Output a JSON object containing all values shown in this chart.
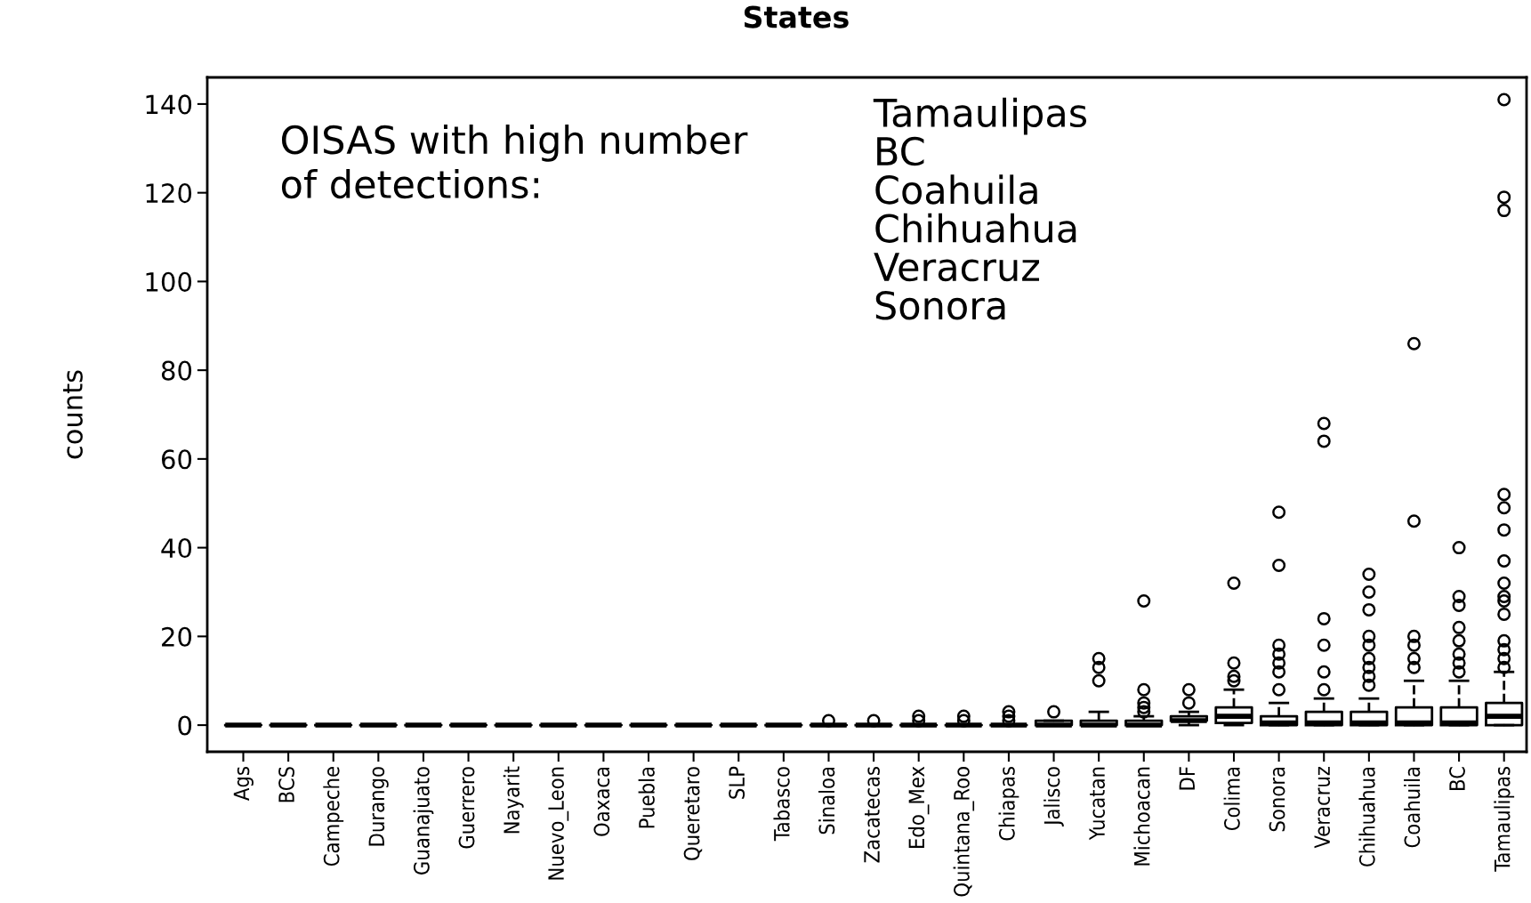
{
  "chart_data": {
    "type": "box",
    "title": "States",
    "ylabel": "counts",
    "categories": [
      "Ags",
      "BCS",
      "Campeche",
      "Durango",
      "Guanajuato",
      "Guerrero",
      "Nayarit",
      "Nuevo_Leon",
      "Oaxaca",
      "Puebla",
      "Queretaro",
      "SLP",
      "Tabasco",
      "Sinaloa",
      "Zacatecas",
      "Edo_Mex",
      "Quintana_Roo",
      "Chiapas",
      "Jalisco",
      "Yucatan",
      "Michoacan",
      "DF",
      "Colima",
      "Sonora",
      "Veracruz",
      "Chihuahua",
      "Coahuila",
      "BC",
      "Tamaulipas"
    ],
    "boxes": [
      {
        "low": 0,
        "q1": 0,
        "median": 0,
        "q3": 0,
        "high": 0
      },
      {
        "low": 0,
        "q1": 0,
        "median": 0,
        "q3": 0,
        "high": 0
      },
      {
        "low": 0,
        "q1": 0,
        "median": 0,
        "q3": 0,
        "high": 0
      },
      {
        "low": 0,
        "q1": 0,
        "median": 0,
        "q3": 0,
        "high": 0
      },
      {
        "low": 0,
        "q1": 0,
        "median": 0,
        "q3": 0,
        "high": 0
      },
      {
        "low": 0,
        "q1": 0,
        "median": 0,
        "q3": 0,
        "high": 0
      },
      {
        "low": 0,
        "q1": 0,
        "median": 0,
        "q3": 0,
        "high": 0
      },
      {
        "low": 0,
        "q1": 0,
        "median": 0,
        "q3": 0,
        "high": 0
      },
      {
        "low": 0,
        "q1": 0,
        "median": 0,
        "q3": 0,
        "high": 0
      },
      {
        "low": 0,
        "q1": 0,
        "median": 0,
        "q3": 0,
        "high": 0
      },
      {
        "low": 0,
        "q1": 0,
        "median": 0,
        "q3": 0,
        "high": 0
      },
      {
        "low": 0,
        "q1": 0,
        "median": 0,
        "q3": 0,
        "high": 0
      },
      {
        "low": 0,
        "q1": 0,
        "median": 0,
        "q3": 0,
        "high": 0
      },
      {
        "low": 0,
        "q1": 0,
        "median": 0,
        "q3": 0,
        "high": 0,
        "outliers": [
          1
        ]
      },
      {
        "low": 0,
        "q1": 0,
        "median": 0,
        "q3": 0,
        "high": 0,
        "outliers": [
          1
        ]
      },
      {
        "low": 0,
        "q1": 0,
        "median": 0,
        "q3": 0,
        "high": 0,
        "outliers": [
          1,
          2
        ]
      },
      {
        "low": 0,
        "q1": 0,
        "median": 0,
        "q3": 0,
        "high": 0,
        "outliers": [
          1,
          2
        ]
      },
      {
        "low": 0,
        "q1": 0,
        "median": 0,
        "q3": 0,
        "high": 0,
        "outliers": [
          1,
          2,
          3
        ]
      },
      {
        "low": 0,
        "q1": 0,
        "median": 0,
        "q3": 1,
        "high": 1,
        "outliers": [
          3
        ]
      },
      {
        "low": 0,
        "q1": 0,
        "median": 0,
        "q3": 1,
        "high": 3,
        "outliers": [
          10,
          13,
          15
        ]
      },
      {
        "low": 0,
        "q1": 0,
        "median": 0,
        "q3": 1,
        "high": 2,
        "outliers": [
          3,
          4,
          5,
          8,
          28
        ]
      },
      {
        "low": 0,
        "q1": 1,
        "median": 1,
        "q3": 2,
        "high": 3,
        "outliers": [
          5,
          8
        ]
      },
      {
        "low": 0,
        "q1": 0.5,
        "median": 2,
        "q3": 4,
        "high": 8,
        "outliers": [
          10,
          11,
          14,
          32
        ]
      },
      {
        "low": 0,
        "q1": 0,
        "median": 0.5,
        "q3": 2,
        "high": 5,
        "outliers": [
          8,
          12,
          14,
          16,
          18,
          36,
          48
        ]
      },
      {
        "low": 0,
        "q1": 0,
        "median": 0.5,
        "q3": 3,
        "high": 6,
        "outliers": [
          8,
          12,
          18,
          24,
          64,
          68
        ]
      },
      {
        "low": 0,
        "q1": 0,
        "median": 0.5,
        "q3": 3,
        "high": 6,
        "outliers": [
          9,
          11,
          13,
          15,
          18,
          20,
          26,
          30,
          34
        ]
      },
      {
        "low": 0,
        "q1": 0,
        "median": 0.5,
        "q3": 4,
        "high": 10,
        "outliers": [
          13,
          15,
          18,
          20,
          46,
          86
        ]
      },
      {
        "low": 0,
        "q1": 0,
        "median": 0.5,
        "q3": 4,
        "high": 10,
        "outliers": [
          12,
          14,
          16,
          19,
          22,
          27,
          29,
          40
        ]
      },
      {
        "low": 0,
        "q1": 0,
        "median": 2,
        "q3": 5,
        "high": 12,
        "outliers": [
          13,
          15,
          17,
          19,
          25,
          28,
          29,
          32,
          37,
          44,
          49,
          52,
          116,
          119,
          141
        ]
      }
    ],
    "ylim": [
      -6,
      146
    ],
    "yticks": [
      0,
      20,
      40,
      60,
      80,
      100,
      120,
      140
    ],
    "grid": false,
    "annotations": [
      "OISAS with high number\nof detections:",
      "Tamaulipas\nBC\nCoahuila\nChihuahua\nVeracruz\nSonora"
    ]
  }
}
